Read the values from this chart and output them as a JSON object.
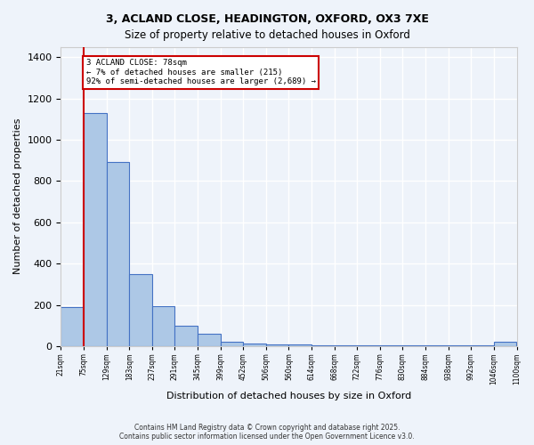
{
  "title_line1": "3, ACLAND CLOSE, HEADINGTON, OXFORD, OX3 7XE",
  "title_line2": "Size of property relative to detached houses in Oxford",
  "xlabel": "Distribution of detached houses by size in Oxford",
  "ylabel": "Number of detached properties",
  "bar_values": [
    190,
    1130,
    890,
    350,
    195,
    100,
    60,
    22,
    15,
    10,
    8,
    5,
    5,
    5,
    5,
    5,
    5,
    5,
    5,
    20
  ],
  "bin_labels": [
    "21sqm",
    "75sqm",
    "129sqm",
    "183sqm",
    "237sqm",
    "291sqm",
    "345sqm",
    "399sqm",
    "452sqm",
    "506sqm",
    "560sqm",
    "614sqm",
    "668sqm",
    "722sqm",
    "776sqm",
    "830sqm",
    "884sqm",
    "938sqm",
    "992sqm",
    "1046sqm",
    "1100sqm"
  ],
  "bar_color": "#adc8e6",
  "bar_edge_color": "#4472c4",
  "background_color": "#eef3fa",
  "grid_color": "#ffffff",
  "red_line_x": 1,
  "annotation_text": "3 ACLAND CLOSE: 78sqm\n← 7% of detached houses are smaller (215)\n92% of semi-detached houses are larger (2,689) →",
  "annotation_box_color": "#ffffff",
  "annotation_border_color": "#cc0000",
  "ylim": [
    0,
    1450
  ],
  "yticks": [
    0,
    200,
    400,
    600,
    800,
    1000,
    1200,
    1400
  ],
  "footer_line1": "Contains HM Land Registry data © Crown copyright and database right 2025.",
  "footer_line2": "Contains public sector information licensed under the Open Government Licence v3.0."
}
